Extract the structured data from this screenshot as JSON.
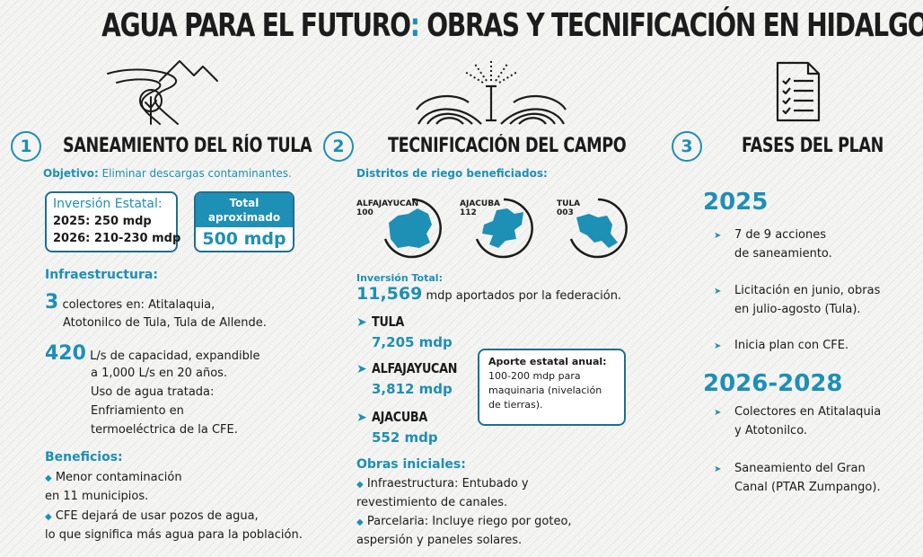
{
  "title": {
    "main": "AGUA PARA EL FUTURO",
    "colon": ":",
    "rest": " OBRAS Y TECNIFICACIÓN EN HIDALGO"
  },
  "icons": {
    "river": "river-mountain-icon",
    "sprinkler": "sprinkler-field-icon",
    "checklist": "checklist-document-icon"
  },
  "section1": {
    "number": "1",
    "title": "SANEAMIENTO DEL RÍO TULA",
    "objective_label": "Objetivo:",
    "objective_text": " Eliminar descargas contaminantes.",
    "inversion_title": "Inversión Estatal:",
    "inversion_2025": "2025: 250 mdp",
    "inversion_2026": "2026: 210-230 mdp",
    "total_header": "Total aproximado",
    "total_value": "500 mdp",
    "infra_label": "Infraestructura:",
    "colectores_num": "3",
    "colectores_text1": " colectores en: Atitalaquia,",
    "colectores_text2": "Atotonilco de Tula, Tula de Allende.",
    "capacity_num": "420",
    "capacity_text1": " L/s de capacidad, expandible",
    "capacity_text2": "a 1,000 L/s en 20 años.",
    "capacity_text3": "Uso de agua tratada:",
    "capacity_text4": "Enfriamiento en",
    "capacity_text5": "termoeléctrica de la CFE.",
    "beneficios_label": "Beneficios:",
    "benefit1_line1": "Menor contaminación",
    "benefit1_line2": "en 11 municipios.",
    "benefit2_line1": "CFE dejará de usar pozos de agua,",
    "benefit2_line2": "lo que significa más agua para la población."
  },
  "section2": {
    "number": "2",
    "title": "TECNIFICACIÓN DEL CAMPO",
    "districts_label": "Distritos de riego beneficiados:",
    "districts": [
      {
        "name": "ALFAJAYUCAN",
        "code": "100"
      },
      {
        "name": "AJACUBA",
        "code": "112"
      },
      {
        "name": "TULA",
        "code": "003"
      }
    ],
    "inversion_label": "Inversión Total:",
    "inversion_value": "11,569",
    "inversion_text": " mdp aportados por la federación.",
    "municipalities": [
      {
        "name": "TULA",
        "value": "7,205 mdp"
      },
      {
        "name": "ALFAJAYUCAN",
        "value": "3,812 mdp"
      },
      {
        "name": "AJACUBA",
        "value": "552 mdp"
      }
    ],
    "aporte_title": "Aporte estatal anual:",
    "aporte_line1": "100-200 mdp para",
    "aporte_line2": "maquinaria (nivelación",
    "aporte_line3": "de tierras).",
    "obras_label": "Obras iniciales:",
    "obra1_line1": "Infraestructura: Entubado y",
    "obra1_line2": "revestimiento de canales.",
    "obra2_line1": "Parcelaria: Incluye riego por goteo,",
    "obra2_line2": "aspersión y paneles solares."
  },
  "section3": {
    "number": "3",
    "title": "FASES DEL PLAN",
    "year1": "2025",
    "items_2025": [
      [
        "7 de 9 acciones",
        "de saneamiento."
      ],
      [
        "Licitación en junio, obras",
        "en julio-agosto (Tula)."
      ],
      [
        "Inicia plan con CFE."
      ]
    ],
    "year2": "2026-2028",
    "items_2026": [
      [
        "Colectores en Atitalaquia",
        "y Atotonilco."
      ],
      [
        "Saneamiento del Gran",
        "Canal (PTAR Zumpango)."
      ]
    ]
  },
  "colors": {
    "accent": "#1e8fb5",
    "dark": "#1b1b1b",
    "box_border": "#1e6f8e"
  }
}
